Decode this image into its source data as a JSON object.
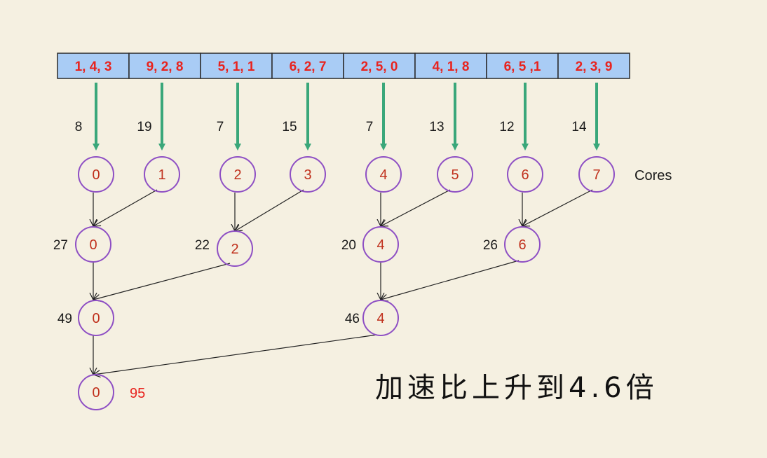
{
  "array_cells": [
    "1, 4, 3",
    "9, 2, 8",
    "5, 1, 1",
    "6, 2, 7",
    "2, 5, 0",
    "4, 1, 8",
    "6, 5 ,1",
    "2, 3, 9"
  ],
  "partial_sums": [
    "8",
    "19",
    "7",
    "15",
    "7",
    "13",
    "12",
    "14"
  ],
  "cores": [
    "0",
    "1",
    "2",
    "3",
    "4",
    "5",
    "6",
    "7"
  ],
  "cores_label": "Cores",
  "level2": [
    {
      "core": "0",
      "sum": "27"
    },
    {
      "core": "2",
      "sum": "22"
    },
    {
      "core": "4",
      "sum": "20"
    },
    {
      "core": "6",
      "sum": "26"
    }
  ],
  "level3": [
    {
      "core": "0",
      "sum": "49"
    },
    {
      "core": "4",
      "sum": "46"
    }
  ],
  "final": {
    "core": "0",
    "sum": "95"
  },
  "caption": "加速比上升到4.6倍",
  "colors": {
    "background": "#f5f0e1",
    "cell_fill": "#a9ccf5",
    "cell_text": "#e8231e",
    "arrow": "#3aa77a",
    "circle_stroke": "#8e4fc4",
    "core_text": "#c0301c"
  }
}
